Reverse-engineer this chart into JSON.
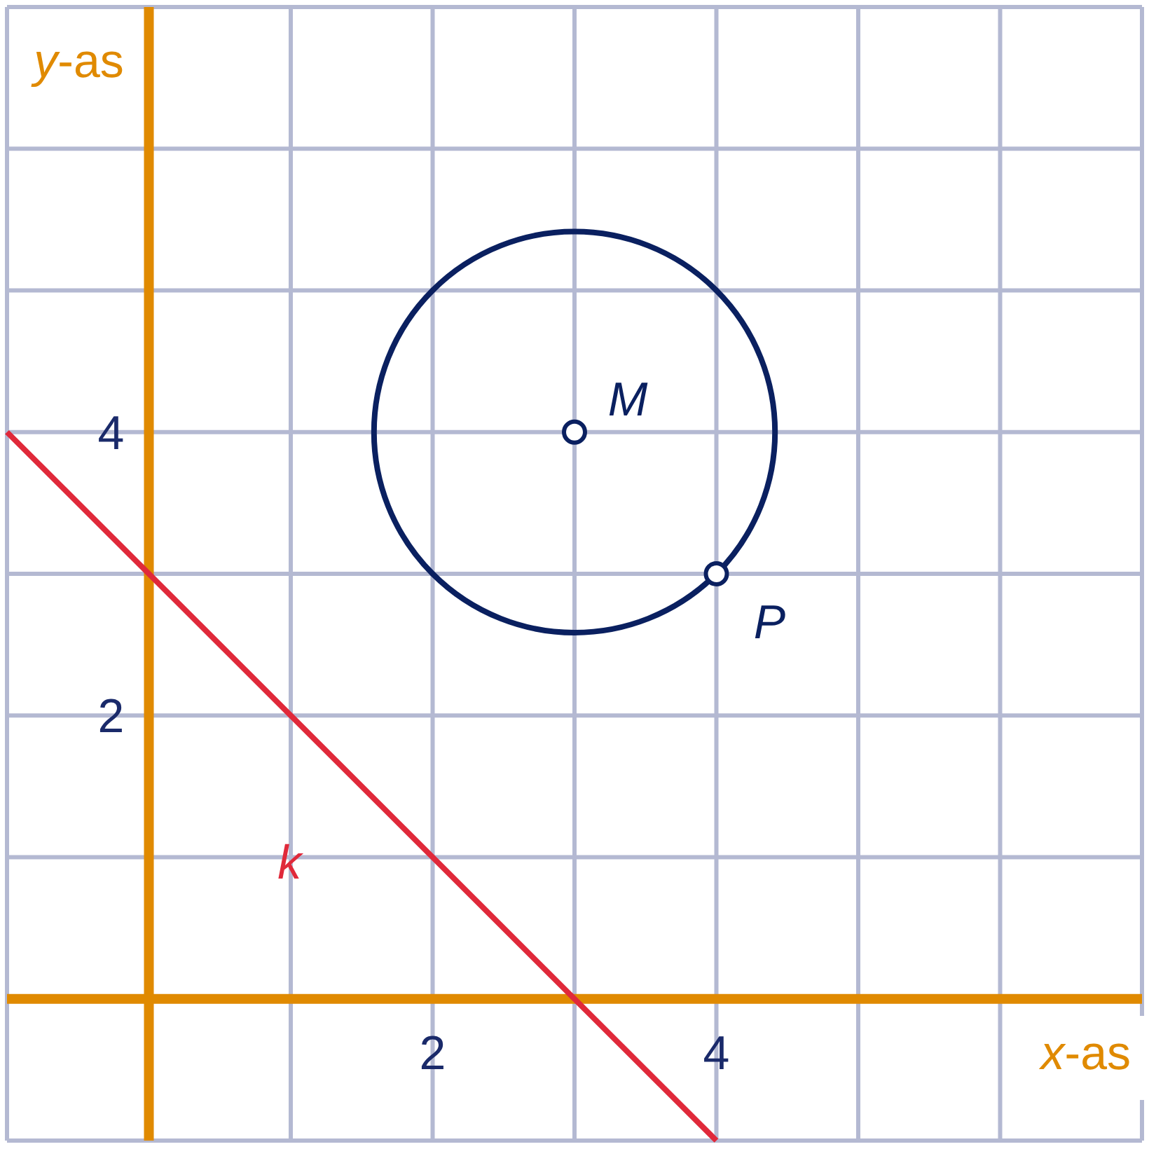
{
  "chart_data": {
    "type": "line",
    "xlabel": "x-as",
    "ylabel": "y-as",
    "xlim": [
      -1,
      7
    ],
    "ylim": [
      -1,
      7
    ],
    "xticks": [
      {
        "value": -1,
        "label": null
      },
      {
        "value": 0,
        "label": null
      },
      {
        "value": 1,
        "label": null
      },
      2,
      {
        "value": 3,
        "label": null
      },
      4,
      {
        "value": 5,
        "label": null
      },
      {
        "value": 6,
        "label": null
      },
      {
        "value": 7,
        "label": null
      }
    ],
    "yticks": [
      {
        "value": -1,
        "label": null
      },
      {
        "value": 0,
        "label": null
      },
      {
        "value": 1,
        "label": null
      },
      2,
      {
        "value": 3,
        "label": null
      },
      4,
      {
        "value": 5,
        "label": null
      },
      {
        "value": 6,
        "label": null
      },
      {
        "value": 7,
        "label": null
      }
    ],
    "grid": true,
    "series": [
      {
        "name": "k",
        "color": "#e0293a",
        "x": [
          -1,
          4
        ],
        "values": [
          4,
          -1
        ]
      },
      {
        "name": "M",
        "type": "scatter",
        "color": "#0a2060",
        "marker": "circle",
        "x": [
          3
        ],
        "values": [
          4
        ]
      },
      {
        "name": "P",
        "type": "scatter",
        "color": "#0a2060",
        "marker": "circle",
        "x": [
          4
        ],
        "values": [
          3
        ]
      }
    ]
  }
}
